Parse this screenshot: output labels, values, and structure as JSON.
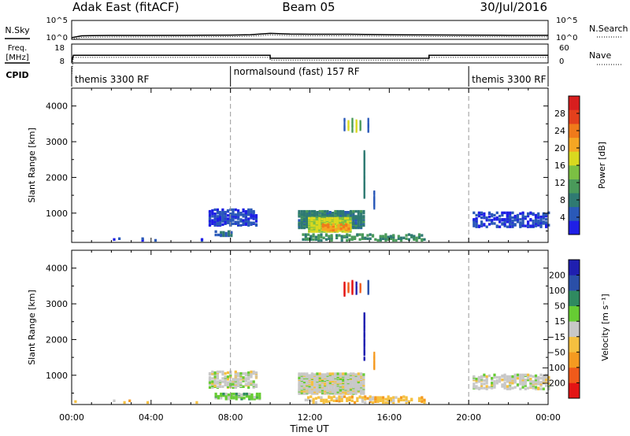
{
  "header": {
    "title": "Adak East (fitACF)",
    "beam": "Beam 05",
    "date": "30/Jul/2016"
  },
  "colors": {
    "power_scale": [
      "#1f1fe6",
      "#2a59b8",
      "#2f7a72",
      "#4a9a5a",
      "#7bc043",
      "#d9d91f",
      "#f5a623",
      "#f07a1a",
      "#e3401c",
      "#d81e1e"
    ],
    "velocity_scale": [
      "#e31414",
      "#f05a1a",
      "#f59a20",
      "#f5c040",
      "#c8c8c8",
      "#66cc33",
      "#2f8a60",
      "#2a4fa8",
      "#1f1fb0"
    ],
    "ground_scatter": "#9a9a9a"
  },
  "chart_data": [
    {
      "type": "line",
      "panel": "noise",
      "left_label": "N.Sky",
      "right_label": "N.Search",
      "left_ticks": [
        "10^5",
        "10^0"
      ],
      "right_ticks": [
        "10^5",
        "10^0"
      ],
      "x": [
        "00:00",
        "00:30",
        "01:00",
        "02:00",
        "04:00",
        "06:00",
        "08:00",
        "09:00",
        "10:00",
        "11:00",
        "12:00",
        "14:00",
        "16:00",
        "18:00",
        "20:00",
        "22:00",
        "24:00"
      ],
      "series": [
        {
          "values": [
            0.05,
            0.16,
            0.17,
            0.18,
            0.18,
            0.19,
            0.2,
            0.22,
            0.3,
            0.26,
            0.25,
            0.25,
            0.22,
            0.21,
            0.2,
            0.19,
            0.19
          ]
        }
      ]
    },
    {
      "type": "line",
      "panel": "frequency",
      "left_label": "Freq.",
      "left_unit": "[MHz]",
      "right_label": "Nave",
      "left_ticks": [
        "18",
        "8"
      ],
      "right_ticks": [
        "60",
        "0"
      ],
      "ylim": [
        8,
        18
      ],
      "x": [
        "00:00",
        "00:05",
        "10:00",
        "10:00",
        "18:00",
        "18:00",
        "24:00"
      ],
      "series": [
        {
          "values": [
            8,
            12,
            12,
            10.3,
            10.3,
            12,
            12
          ]
        },
        {
          "values": [
            0,
            10.8,
            10.8,
            9.2,
            9.2,
            10.8,
            10.8
          ]
        }
      ]
    },
    {
      "type": "table",
      "panel": "cpid",
      "label": "CPID",
      "segments": [
        {
          "start": "00:00",
          "end": "08:00",
          "text": "themis 3300 RF"
        },
        {
          "start": "08:00",
          "end": "20:00",
          "text": "normalsound (fast) 157 RF"
        },
        {
          "start": "20:00",
          "end": "24:00",
          "text": "themis 3300 RF"
        }
      ]
    },
    {
      "type": "heatmap",
      "panel": "power",
      "ylabel": "Slant Range [km]",
      "ylim": [
        180,
        4500
      ],
      "yticks": [
        1000,
        2000,
        3000,
        4000
      ],
      "xlim": [
        0,
        24
      ],
      "colorbar_label": "Power [dB]",
      "colorbar_ticks": [
        4,
        8,
        12,
        16,
        20,
        24,
        28
      ],
      "clim": [
        0,
        32
      ],
      "regions": [
        {
          "t0": 6.9,
          "t1": 9.3,
          "r0": 620,
          "r1": 1080,
          "level": 4,
          "density": 0.5
        },
        {
          "t0": 7.2,
          "t1": 8.0,
          "r0": 330,
          "r1": 460,
          "level": 6,
          "density": 0.4
        },
        {
          "t0": 11.4,
          "t1": 14.7,
          "r0": 550,
          "r1": 1020,
          "level": 8,
          "density": 0.75
        },
        {
          "t0": 11.9,
          "t1": 14.1,
          "r0": 450,
          "r1": 820,
          "level": 16,
          "density": 0.8
        },
        {
          "t0": 12.6,
          "t1": 14.0,
          "r0": 480,
          "r1": 650,
          "level": 22,
          "density": 0.7
        },
        {
          "t0": 11.6,
          "t1": 17.8,
          "r0": 200,
          "r1": 380,
          "level": 10,
          "density": 0.35
        },
        {
          "t0": 20.2,
          "t1": 24.0,
          "r0": 580,
          "r1": 980,
          "level": 4,
          "density": 0.35
        },
        {
          "t0": 0.0,
          "t1": 6.5,
          "r0": 200,
          "r1": 260,
          "level": 4,
          "density": 0.05
        }
      ],
      "streaks": [
        {
          "t": 13.7,
          "r0": 3200,
          "r1": 3600,
          "level": 6
        },
        {
          "t": 13.9,
          "r0": 3300,
          "r1": 3550,
          "level": 16
        },
        {
          "t": 14.1,
          "r0": 3250,
          "r1": 3600,
          "level": 12
        },
        {
          "t": 14.3,
          "r0": 3250,
          "r1": 3550,
          "level": 18
        },
        {
          "t": 14.5,
          "r0": 3300,
          "r1": 3550,
          "level": 10
        },
        {
          "t": 14.9,
          "r0": 3250,
          "r1": 3600,
          "level": 6
        },
        {
          "t": 14.7,
          "r0": 1400,
          "r1": 2700,
          "level": 8
        },
        {
          "t": 15.2,
          "r0": 1100,
          "r1": 1600,
          "level": 6
        }
      ]
    },
    {
      "type": "heatmap",
      "panel": "velocity",
      "ylabel": "Slant Range [km]",
      "xlabel": "Time UT",
      "ylim": [
        180,
        4500
      ],
      "yticks": [
        1000,
        2000,
        3000,
        4000
      ],
      "xlim": [
        0,
        24
      ],
      "xticks": [
        "00:00",
        "04:00",
        "08:00",
        "12:00",
        "16:00",
        "20:00",
        "00:00"
      ],
      "colorbar_label": "Velocity [m s⁻¹]",
      "colorbar_ticks": [
        "200",
        "100",
        "50",
        "15",
        "−15",
        "−50",
        "−100",
        "−200"
      ],
      "regions": [
        {
          "t0": 6.9,
          "t1": 9.3,
          "r0": 620,
          "r1": 1080,
          "level": 4,
          "density": 0.5
        },
        {
          "t0": 7.2,
          "t1": 9.5,
          "r0": 300,
          "r1": 440,
          "level": 5,
          "density": 0.55
        },
        {
          "t0": 11.4,
          "t1": 14.7,
          "r0": 450,
          "r1": 1020,
          "level": 4,
          "density": 0.8
        },
        {
          "t0": 11.6,
          "t1": 17.8,
          "r0": 200,
          "r1": 380,
          "level": 3,
          "density": 0.35
        },
        {
          "t0": 20.2,
          "t1": 24.0,
          "r0": 580,
          "r1": 980,
          "level": 4,
          "density": 0.35
        },
        {
          "t0": 0.0,
          "t1": 6.5,
          "r0": 200,
          "r1": 260,
          "level": 3,
          "density": 0.05
        }
      ],
      "streaks": [
        {
          "t": 13.7,
          "r0": 3200,
          "r1": 3600,
          "level": 0
        },
        {
          "t": 13.9,
          "r0": 3300,
          "r1": 3550,
          "level": 1
        },
        {
          "t": 14.1,
          "r0": 3250,
          "r1": 3600,
          "level": 0
        },
        {
          "t": 14.3,
          "r0": 3250,
          "r1": 3550,
          "level": 8
        },
        {
          "t": 14.5,
          "r0": 3300,
          "r1": 3550,
          "level": 1
        },
        {
          "t": 14.9,
          "r0": 3250,
          "r1": 3600,
          "level": 7
        },
        {
          "t": 14.7,
          "r0": 1400,
          "r1": 2700,
          "level": 8
        },
        {
          "t": 15.2,
          "r0": 1100,
          "r1": 1600,
          "level": 2
        }
      ]
    }
  ]
}
